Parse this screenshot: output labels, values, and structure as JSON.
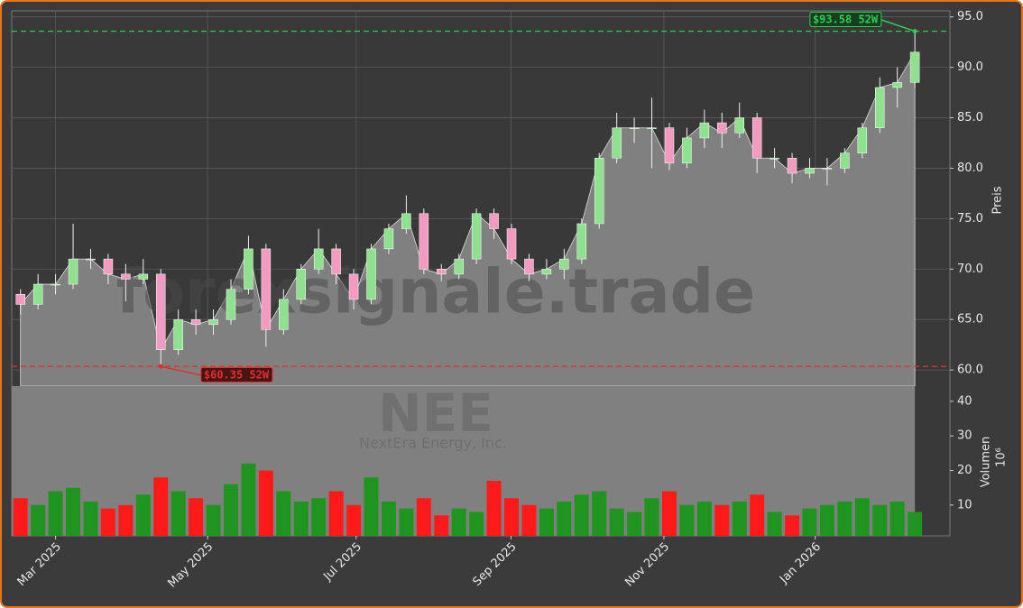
{
  "chart_data": {
    "type": "candlestick",
    "watermark": "forexsignale.trade",
    "symbol": "NEE",
    "company": "NextEra Energy, Inc.",
    "ylabel": "Preis",
    "volume_label": "Volumen",
    "volume_unit": "10⁶",
    "up_color": "#8fe08f",
    "down_color": "#f29bc0",
    "volume_up_color": "#1f951f",
    "volume_down_color": "#ff1a1a",
    "area_color": "#808080",
    "grid": true,
    "categories": [
      null,
      null,
      null,
      null,
      null,
      null,
      null,
      null,
      null,
      null,
      null,
      null,
      null,
      null,
      null,
      null,
      null,
      null,
      null,
      null,
      null,
      null,
      null,
      null,
      null,
      null,
      null,
      null,
      null,
      null,
      null,
      null,
      null,
      null,
      null,
      null,
      null,
      null,
      null,
      null,
      null,
      null,
      null,
      null,
      null,
      null,
      null,
      null,
      null,
      null,
      null,
      null
    ],
    "open": [
      67.5,
      66.5,
      68.5,
      68.5,
      71,
      71,
      69.5,
      69,
      69.5,
      62,
      65,
      64.5,
      65,
      68,
      72,
      64,
      67,
      70,
      72,
      69.5,
      67,
      72,
      74,
      75.5,
      70,
      69.5,
      71,
      75.5,
      74,
      71,
      69.5,
      70,
      71,
      74.5,
      81,
      84,
      84,
      84,
      80.5,
      83,
      84.5,
      83.5,
      85,
      81,
      81,
      79.5,
      80,
      80,
      81.5,
      84,
      88,
      88.5
    ],
    "high": [
      68,
      69.5,
      69.5,
      74.5,
      72,
      71.5,
      70.5,
      71,
      70,
      66,
      66,
      66,
      69,
      73.3,
      72.5,
      68,
      70.5,
      74,
      72.5,
      70,
      72.5,
      74.5,
      77.3,
      76,
      70.5,
      71.5,
      76,
      76,
      74.5,
      71.5,
      71,
      72,
      75,
      81.5,
      85.5,
      85,
      87,
      84.5,
      84,
      85.8,
      85.5,
      86.5,
      85.5,
      82,
      81.5,
      81,
      81,
      82,
      84.5,
      89,
      90,
      93.58
    ],
    "low": [
      65.5,
      66,
      67.5,
      68,
      70,
      68.5,
      66.8,
      68.5,
      60.35,
      61.5,
      63.5,
      63.5,
      64.5,
      67.5,
      62.3,
      63.5,
      66.5,
      69.5,
      68.5,
      66,
      66.5,
      71.5,
      73.5,
      69.5,
      68.8,
      69,
      70.5,
      73,
      70.5,
      68.8,
      69,
      69,
      70.5,
      74,
      80.5,
      82.5,
      80,
      79.8,
      80,
      82,
      82,
      83,
      79.5,
      80,
      78.5,
      79,
      78.3,
      79.5,
      81,
      83.5,
      86,
      88
    ],
    "close": [
      66.5,
      68.5,
      68.5,
      71,
      71,
      69.5,
      69,
      69.5,
      62,
      65,
      64.5,
      65,
      68,
      72,
      64,
      67,
      70,
      72,
      69.5,
      67,
      72,
      74,
      75.5,
      70,
      69.5,
      71,
      75.5,
      74,
      71,
      69.5,
      70,
      71,
      74.5,
      81,
      84,
      84,
      84,
      80.5,
      83,
      84.5,
      83.5,
      85,
      81,
      81,
      79.5,
      80,
      80,
      81.5,
      84,
      88,
      88.5,
      91.5
    ],
    "volume": [
      12,
      10,
      14,
      15,
      11,
      9,
      10,
      13,
      18,
      14,
      12,
      10,
      16,
      22,
      20,
      14,
      11,
      12,
      14,
      10,
      18,
      11,
      9,
      12,
      7,
      9,
      8,
      17,
      12,
      10,
      9,
      11,
      13,
      14,
      9,
      8,
      12,
      14,
      10,
      11,
      10,
      11,
      13,
      8,
      7,
      9,
      10,
      11,
      12,
      10,
      11,
      8
    ],
    "xlim": [
      -0.5,
      53
    ],
    "xticks": [
      {
        "value": 2.0,
        "label": "Mar 2025"
      },
      {
        "value": 10.67,
        "label": "May 2025"
      },
      {
        "value": 19.14,
        "label": "Jul 2025"
      },
      {
        "value": 27.97,
        "label": "Sep 2025"
      },
      {
        "value": 36.69,
        "label": "Nov 2025"
      },
      {
        "value": 45.32,
        "label": "Jan 2026"
      }
    ],
    "ylim": [
      58.4,
      95.6
    ],
    "yticks": [
      {
        "value": 60,
        "label": "60.0"
      },
      {
        "value": 65,
        "label": "65.0"
      },
      {
        "value": 70,
        "label": "70.0"
      },
      {
        "value": 75,
        "label": "75.0"
      },
      {
        "value": 80,
        "label": "80.0"
      },
      {
        "value": 85,
        "label": "85.0"
      },
      {
        "value": 90,
        "label": "90.0"
      },
      {
        "value": 95,
        "label": "95.0"
      }
    ],
    "volume_ylim": [
      1.1,
      44.4
    ],
    "volume_yticks": [
      10,
      20,
      30,
      40
    ],
    "high_52w": {
      "value": 93.58,
      "label": "$93.58 52W",
      "index": 51,
      "color": "#2ecc55"
    },
    "low_52w": {
      "value": 60.35,
      "label": "$60.35 52W",
      "index": 8,
      "color": "#e03030"
    }
  }
}
